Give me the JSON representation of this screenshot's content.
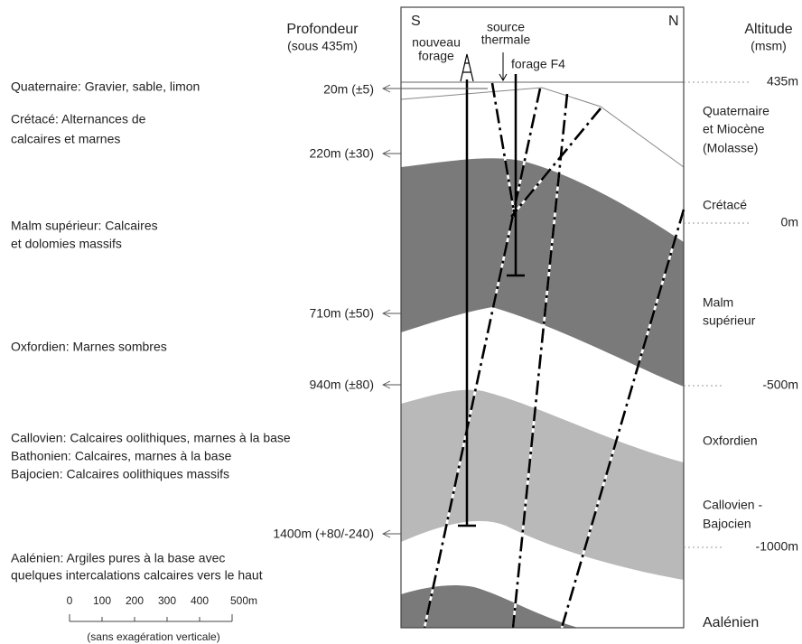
{
  "compass": {
    "south": "S",
    "north": "N"
  },
  "depth_header": {
    "title": "Profondeur",
    "subtitle": "(sous 435m)"
  },
  "altitude_header": {
    "title": "Altitude",
    "subtitle": "(msm)"
  },
  "wells": {
    "new": [
      "nouveau",
      "forage"
    ],
    "spring": [
      "source",
      "thermale"
    ],
    "f4": "forage F4"
  },
  "units": [
    [
      "Quaternaire: Gravier, sable, limon"
    ],
    [
      "Crétacé: Alternances de",
      "calcaires et marnes"
    ],
    [
      "Malm supérieur: Calcaires",
      "et dolomies massifs"
    ],
    [
      "Oxfordien: Marnes sombres"
    ],
    [
      "Callovien: Calcaires oolithiques, marnes à la base",
      "Bathonien: Calcaires, marnes à la base",
      "Bajocien: Calcaires oolithiques massifs"
    ],
    [
      "Aalénien: Argiles pures à la base avec",
      "quelques intercalations calcaires vers le haut"
    ]
  ],
  "depths": [
    "20m (±5)",
    "220m (±30)",
    "710m (±50)",
    "940m (±80)",
    "1400m (+80/-240)"
  ],
  "altitudes": [
    "435m",
    "0m",
    "-500m",
    "-1000m"
  ],
  "formations": [
    [
      "Quaternaire",
      "et Miocène",
      "(Molasse)"
    ],
    [
      "Crétacé"
    ],
    [
      "Malm",
      "supérieur"
    ],
    [
      "Oxfordien"
    ],
    [
      "Callovien -",
      "Bajocien"
    ],
    [
      "Aalénien"
    ]
  ],
  "scale": {
    "ticks": [
      "0",
      "100",
      "200",
      "300",
      "400",
      "500m"
    ],
    "caption": "(sans exagération verticale)"
  }
}
